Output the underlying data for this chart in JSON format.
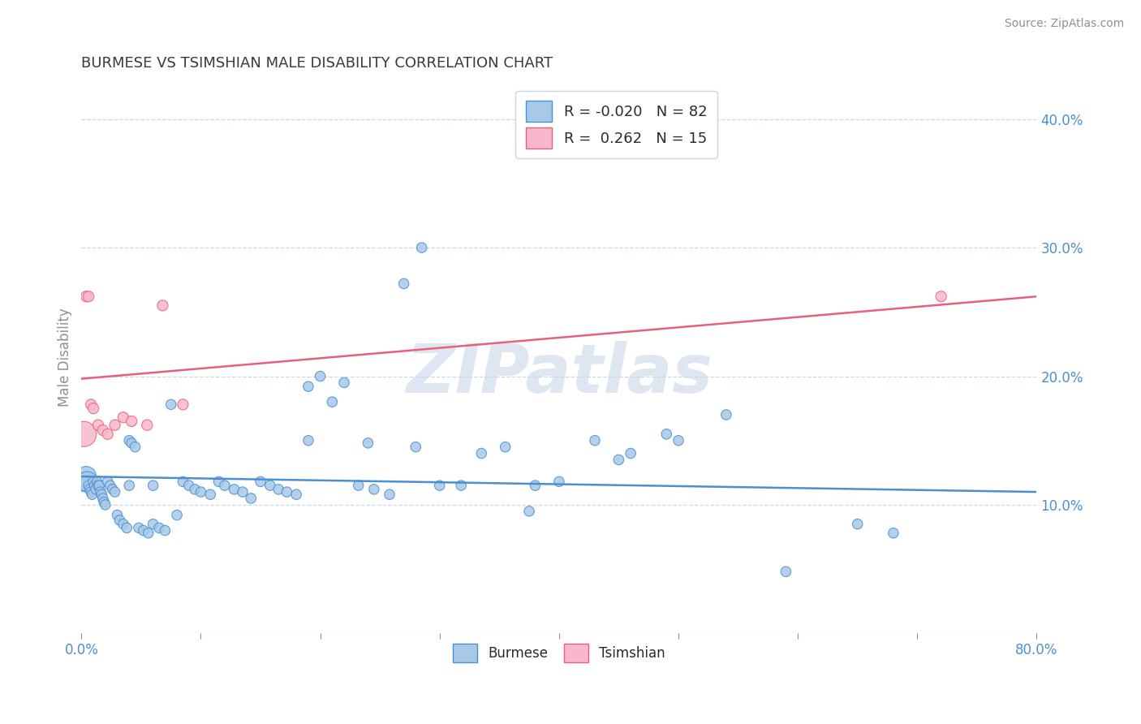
{
  "title": "BURMESE VS TSIMSHIAN MALE DISABILITY CORRELATION CHART",
  "source": "Source: ZipAtlas.com",
  "ylabel": "Male Disability",
  "xlim": [
    0.0,
    0.8
  ],
  "ylim": [
    0.0,
    0.43
  ],
  "burmese_color": "#a8c8e8",
  "tsimshian_color": "#f8b8cc",
  "burmese_line_color": "#4a90d0",
  "tsimshian_line_color": "#e8607a",
  "R_burmese": -0.02,
  "N_burmese": 82,
  "R_tsimshian": 0.262,
  "N_tsimshian": 15,
  "watermark": "ZIPatlas",
  "title_color": "#3a3a3a",
  "axis_color": "#909090",
  "grid_color": "#c8d8e8",
  "legend_R_color": "#4a90d0",
  "burmese_x": [
    0.003,
    0.004,
    0.005,
    0.006,
    0.007,
    0.008,
    0.009,
    0.01,
    0.011,
    0.012,
    0.013,
    0.014,
    0.015,
    0.016,
    0.017,
    0.018,
    0.019,
    0.02,
    0.022,
    0.024,
    0.026,
    0.028,
    0.03,
    0.032,
    0.035,
    0.038,
    0.04,
    0.042,
    0.045,
    0.048,
    0.052,
    0.056,
    0.06,
    0.065,
    0.07,
    0.075,
    0.08,
    0.085,
    0.09,
    0.095,
    0.1,
    0.108,
    0.115,
    0.12,
    0.128,
    0.135,
    0.142,
    0.15,
    0.158,
    0.165,
    0.172,
    0.18,
    0.19,
    0.2,
    0.21,
    0.22,
    0.232,
    0.245,
    0.258,
    0.27,
    0.285,
    0.3,
    0.318,
    0.335,
    0.355,
    0.375,
    0.4,
    0.43,
    0.46,
    0.5,
    0.54,
    0.59,
    0.19,
    0.24,
    0.28,
    0.38,
    0.45,
    0.49,
    0.04,
    0.06,
    0.65,
    0.68
  ],
  "burmese_y": [
    0.118,
    0.122,
    0.118,
    0.115,
    0.112,
    0.11,
    0.108,
    0.118,
    0.115,
    0.112,
    0.118,
    0.115,
    0.115,
    0.11,
    0.108,
    0.105,
    0.102,
    0.1,
    0.118,
    0.115,
    0.112,
    0.11,
    0.092,
    0.088,
    0.085,
    0.082,
    0.15,
    0.148,
    0.145,
    0.082,
    0.08,
    0.078,
    0.085,
    0.082,
    0.08,
    0.178,
    0.092,
    0.118,
    0.115,
    0.112,
    0.11,
    0.108,
    0.118,
    0.115,
    0.112,
    0.11,
    0.105,
    0.118,
    0.115,
    0.112,
    0.11,
    0.108,
    0.15,
    0.2,
    0.18,
    0.195,
    0.115,
    0.112,
    0.108,
    0.272,
    0.3,
    0.115,
    0.115,
    0.14,
    0.145,
    0.095,
    0.118,
    0.15,
    0.14,
    0.15,
    0.17,
    0.048,
    0.192,
    0.148,
    0.145,
    0.115,
    0.135,
    0.155,
    0.115,
    0.115,
    0.085,
    0.078
  ],
  "tsimshian_x": [
    0.002,
    0.004,
    0.006,
    0.008,
    0.01,
    0.014,
    0.018,
    0.022,
    0.028,
    0.035,
    0.042,
    0.055,
    0.068,
    0.085,
    0.72
  ],
  "tsimshian_y": [
    0.155,
    0.262,
    0.262,
    0.178,
    0.175,
    0.162,
    0.158,
    0.155,
    0.162,
    0.168,
    0.165,
    0.162,
    0.255,
    0.178,
    0.262
  ],
  "tsimshian_large_idx": 0,
  "burmese_trend_x0": 0.0,
  "burmese_trend_y0": 0.122,
  "burmese_trend_x1": 0.8,
  "burmese_trend_y1": 0.11,
  "tsimshian_trend_x0": 0.0,
  "tsimshian_trend_y0": 0.198,
  "tsimshian_trend_x1": 0.8,
  "tsimshian_trend_y1": 0.262
}
